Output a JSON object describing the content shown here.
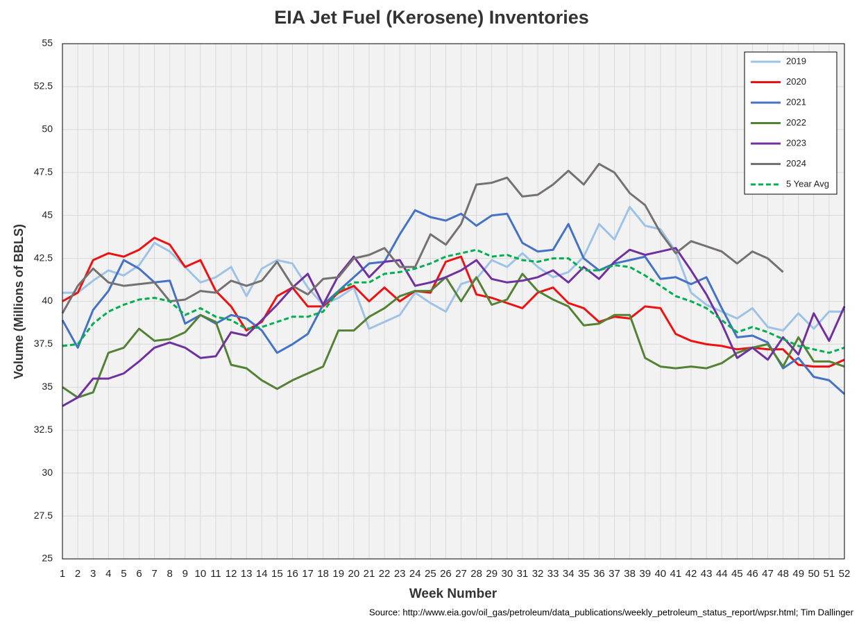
{
  "chart_data": {
    "type": "line",
    "title": "EIA Jet Fuel (Kerosene) Inventories",
    "x_label": "Week Number",
    "y_label": "Volume (Millions of BBLS)",
    "source": "Source: http://www.eia.gov/oil_gas/petroleum/data_publications/weekly_petroleum_status_report/wpsr.html; Tim Dallinger",
    "x": [
      1,
      2,
      3,
      4,
      5,
      6,
      7,
      8,
      9,
      10,
      11,
      12,
      13,
      14,
      15,
      16,
      17,
      18,
      19,
      20,
      21,
      22,
      23,
      24,
      25,
      26,
      27,
      28,
      29,
      30,
      31,
      32,
      33,
      34,
      35,
      36,
      37,
      38,
      39,
      40,
      41,
      42,
      43,
      44,
      45,
      46,
      47,
      48,
      49,
      50,
      51,
      52
    ],
    "xlim": [
      1,
      52
    ],
    "ylim": [
      25,
      55
    ],
    "yticks": [
      25,
      27.5,
      30,
      32.5,
      35,
      37.5,
      40,
      42.5,
      45,
      47.5,
      50,
      52.5,
      55
    ],
    "grid": true,
    "legend": "upper right",
    "series": [
      {
        "name": "2019",
        "color": "#9dc3e6",
        "style": "solid",
        "values": [
          40.5,
          40.5,
          41.2,
          41.8,
          41.5,
          42.1,
          43.4,
          42.9,
          42.0,
          41.1,
          41.4,
          42.0,
          40.3,
          41.9,
          42.4,
          42.2,
          40.8,
          39.8,
          40.2,
          40.8,
          38.4,
          38.8,
          39.2,
          40.5,
          39.9,
          39.4,
          41.0,
          41.3,
          42.4,
          42.0,
          42.8,
          42.0,
          41.4,
          41.7,
          42.6,
          44.5,
          43.6,
          45.5,
          44.4,
          44.2,
          42.9,
          40.5,
          39.8,
          39.4,
          39.0,
          39.6,
          38.5,
          38.3,
          39.3,
          38.4,
          39.4,
          39.4
        ]
      },
      {
        "name": "2020",
        "color": "#ee1111",
        "style": "solid",
        "values": [
          40.0,
          40.5,
          42.4,
          42.8,
          42.6,
          43.0,
          43.7,
          43.3,
          42.0,
          42.4,
          40.6,
          39.7,
          38.3,
          38.8,
          40.3,
          40.8,
          39.7,
          39.7,
          40.5,
          40.9,
          40.0,
          40.8,
          40.0,
          40.6,
          40.5,
          42.3,
          42.6,
          40.4,
          40.2,
          39.9,
          39.6,
          40.5,
          40.8,
          39.9,
          39.6,
          38.8,
          39.1,
          39.0,
          39.7,
          39.6,
          38.1,
          37.7,
          37.5,
          37.4,
          37.2,
          37.3,
          37.2,
          37.2,
          36.3,
          36.2,
          36.2,
          36.6
        ]
      },
      {
        "name": "2021",
        "color": "#4472c4",
        "style": "solid",
        "values": [
          38.9,
          37.3,
          39.5,
          40.6,
          42.4,
          41.9,
          41.1,
          41.2,
          38.7,
          39.2,
          38.7,
          39.2,
          39.0,
          38.3,
          37.0,
          37.5,
          38.1,
          39.8,
          40.6,
          41.4,
          42.2,
          42.3,
          43.9,
          45.3,
          44.9,
          44.7,
          45.1,
          44.4,
          45.0,
          45.1,
          43.4,
          42.9,
          43.0,
          44.5,
          42.5,
          41.8,
          42.2,
          42.4,
          42.6,
          41.3,
          41.4,
          41.0,
          41.4,
          39.6,
          37.9,
          38.0,
          37.6,
          36.1,
          36.7,
          35.6,
          35.4,
          34.6
        ]
      },
      {
        "name": "2022",
        "color": "#548235",
        "style": "solid",
        "values": [
          35.0,
          34.4,
          34.7,
          37.0,
          37.3,
          38.4,
          37.7,
          37.8,
          38.2,
          39.2,
          38.8,
          36.3,
          36.1,
          35.4,
          34.9,
          35.4,
          35.8,
          36.2,
          38.3,
          38.3,
          39.1,
          39.6,
          40.3,
          40.6,
          40.6,
          41.4,
          40.0,
          41.4,
          39.8,
          40.1,
          41.6,
          40.6,
          40.1,
          39.7,
          38.6,
          38.7,
          39.2,
          39.2,
          36.7,
          36.2,
          36.1,
          36.2,
          36.1,
          36.4,
          37.0,
          37.3,
          37.5,
          36.2,
          37.9,
          36.5,
          36.5,
          36.2
        ]
      },
      {
        "name": "2023",
        "color": "#7030a0",
        "style": "solid",
        "values": [
          33.9,
          34.4,
          35.5,
          35.5,
          35.8,
          36.5,
          37.3,
          37.6,
          37.3,
          36.7,
          36.8,
          38.2,
          38.0,
          38.9,
          39.8,
          40.8,
          41.6,
          39.8,
          41.5,
          42.6,
          41.4,
          42.3,
          42.4,
          40.9,
          41.1,
          41.4,
          41.8,
          42.4,
          41.3,
          41.1,
          41.2,
          41.4,
          41.8,
          41.1,
          42.0,
          41.3,
          42.3,
          43.0,
          42.7,
          42.9,
          43.1,
          41.8,
          40.4,
          38.7,
          36.7,
          37.3,
          36.6,
          37.9,
          36.9,
          39.3,
          37.7,
          39.7
        ]
      },
      {
        "name": "2024",
        "color": "#767171",
        "style": "solid",
        "values": [
          39.3,
          40.9,
          41.9,
          41.1,
          40.9,
          41.0,
          41.1,
          40.0,
          40.1,
          40.6,
          40.5,
          41.2,
          40.9,
          41.2,
          42.3,
          40.9,
          40.4,
          41.3,
          41.4,
          42.5,
          42.7,
          43.1,
          42.0,
          42.0,
          43.9,
          43.3,
          44.5,
          46.8,
          46.9,
          47.2,
          46.1,
          46.2,
          46.8,
          47.6,
          46.8,
          48.0,
          47.5,
          46.3,
          45.6,
          44.0,
          42.8,
          43.5,
          43.2,
          42.9,
          42.2,
          42.9,
          42.5,
          41.7,
          null,
          null,
          null,
          null
        ]
      },
      {
        "name": "5 Year Avg",
        "color": "#00b050",
        "style": "dashed",
        "values": [
          37.4,
          37.5,
          38.7,
          39.4,
          39.8,
          40.1,
          40.2,
          40.0,
          39.2,
          39.6,
          39.1,
          38.9,
          38.4,
          38.5,
          38.8,
          39.1,
          39.1,
          39.4,
          40.6,
          41.1,
          41.1,
          41.6,
          41.7,
          41.9,
          42.2,
          42.6,
          42.8,
          43.0,
          42.6,
          42.7,
          42.4,
          42.3,
          42.5,
          42.5,
          41.8,
          41.8,
          42.1,
          42.0,
          41.5,
          40.9,
          40.3,
          40.0,
          39.6,
          38.9,
          38.2,
          38.5,
          38.2,
          37.8,
          37.4,
          37.2,
          37.0,
          37.3
        ]
      }
    ]
  }
}
